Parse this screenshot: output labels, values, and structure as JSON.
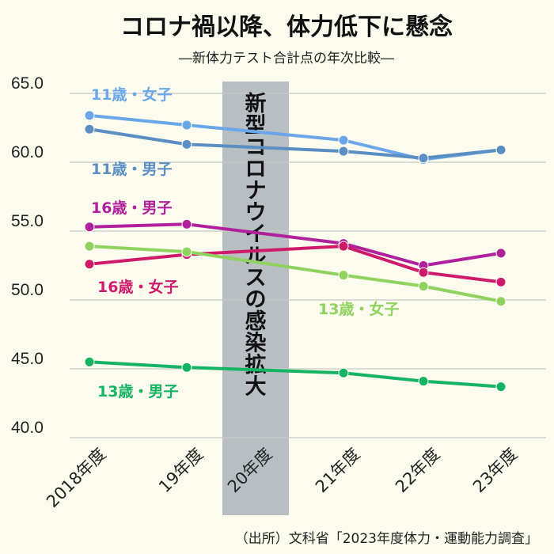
{
  "header": {
    "title": "コロナ禍以降、体力低下に懸念",
    "subtitle": "―新体力テスト合計点の年次比較―"
  },
  "source": "（出所）文科省「2023年度体力・運動能力調査」",
  "chart_data": {
    "type": "line",
    "title": "コロナ禍以降、体力低下に懸念",
    "subtitle": "―新体力テスト合計点の年次比較―",
    "xlabel": "",
    "ylabel": "",
    "categories": [
      "2018年度",
      "19年度",
      "20年度",
      "21年度",
      "22年度",
      "23年度"
    ],
    "yticks": [
      "65.0",
      "60.0",
      "55.0",
      "50.0",
      "45.0",
      "40.0"
    ],
    "ylim": [
      40,
      65
    ],
    "grid": "horizontal",
    "annotation": {
      "category": "20年度",
      "text": "新型コロナウイルスの感染拡大",
      "color": "#aab4ba"
    },
    "series": [
      {
        "name": "11歳・女子",
        "color": "#6aa6ea",
        "values": [
          63.4,
          62.7,
          null,
          61.6,
          60.2,
          60.9
        ]
      },
      {
        "name": "11歳・男子",
        "color": "#5b8ec3",
        "values": [
          62.4,
          61.3,
          null,
          60.8,
          60.3,
          60.9
        ]
      },
      {
        "name": "16歳・男子",
        "color": "#b0209c",
        "values": [
          55.3,
          55.5,
          null,
          54.1,
          52.5,
          53.4
        ]
      },
      {
        "name": "16歳・女子",
        "color": "#cf1a6b",
        "values": [
          52.6,
          53.3,
          null,
          53.9,
          52.0,
          51.3
        ]
      },
      {
        "name": "13歳・女子",
        "color": "#8fd25e",
        "values": [
          53.9,
          53.5,
          null,
          51.8,
          51.0,
          49.9
        ]
      },
      {
        "name": "13歳・男子",
        "color": "#15b364",
        "values": [
          45.5,
          45.1,
          null,
          44.7,
          44.1,
          43.7
        ]
      }
    ]
  }
}
